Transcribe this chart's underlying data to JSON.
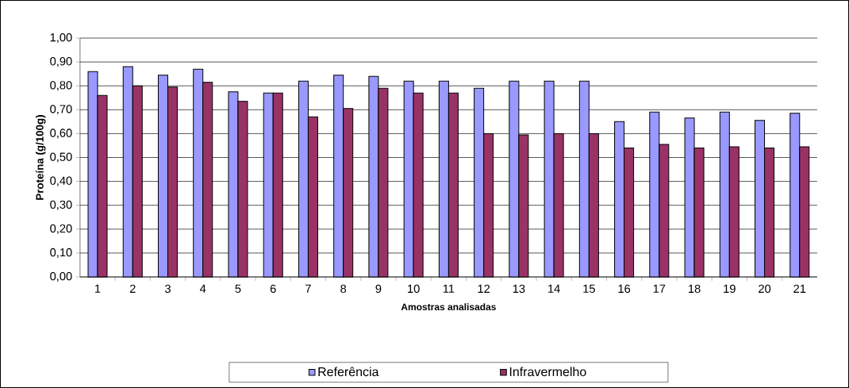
{
  "chart_data": {
    "type": "bar",
    "xlabel": "Amostras analisadas",
    "ylabel": "Proteína (g/100g)",
    "categories": [
      "1",
      "2",
      "3",
      "4",
      "5",
      "6",
      "7",
      "8",
      "9",
      "10",
      "11",
      "12",
      "13",
      "14",
      "15",
      "16",
      "17",
      "18",
      "19",
      "20",
      "21"
    ],
    "series": [
      {
        "name": "Referência",
        "color": "#9999ff",
        "values": [
          0.86,
          0.88,
          0.845,
          0.87,
          0.775,
          0.77,
          0.82,
          0.845,
          0.84,
          0.82,
          0.82,
          0.79,
          0.82,
          0.82,
          0.82,
          0.65,
          0.69,
          0.665,
          0.69,
          0.655,
          0.685
        ]
      },
      {
        "name": "Infravermelho",
        "color": "#993366",
        "values": [
          0.76,
          0.8,
          0.795,
          0.815,
          0.735,
          0.77,
          0.67,
          0.705,
          0.79,
          0.77,
          0.77,
          0.6,
          0.595,
          0.6,
          0.6,
          0.54,
          0.555,
          0.54,
          0.545,
          0.54,
          0.545
        ]
      }
    ],
    "ylim": [
      0,
      1
    ],
    "yticks": [
      {
        "value": 0,
        "label": "0,00"
      },
      {
        "value": 0.1,
        "label": "0,10"
      },
      {
        "value": 0.2,
        "label": "0,20"
      },
      {
        "value": 0.3,
        "label": "0,30"
      },
      {
        "value": 0.4,
        "label": "0,40"
      },
      {
        "value": 0.5,
        "label": "0,50"
      },
      {
        "value": 0.6,
        "label": "0,60"
      },
      {
        "value": 0.7,
        "label": "0,70"
      },
      {
        "value": 0.8,
        "label": "0,80"
      },
      {
        "value": 0.9,
        "label": "0,90"
      },
      {
        "value": 1,
        "label": "1,00"
      }
    ],
    "grid": "y",
    "legend": "bottom"
  }
}
